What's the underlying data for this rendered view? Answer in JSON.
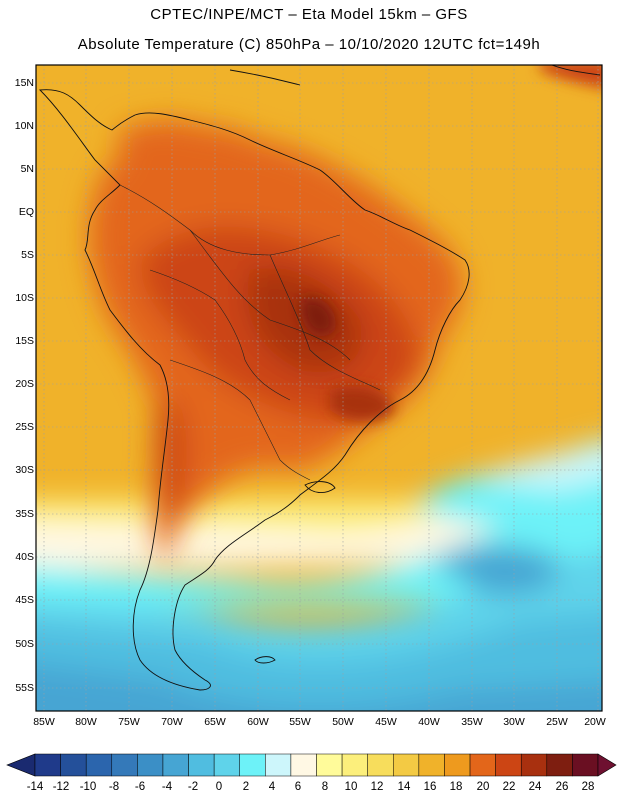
{
  "header": {
    "line1": "CPTEC/INPE/MCT –  Eta Model 15km – GFS",
    "line2": "Absolute Temperature (C) 850hPa – 10/10/2020 12UTC fct=149h"
  },
  "map": {
    "region": "South America",
    "lat_labels": [
      "15N",
      "10N",
      "5N",
      "EQ",
      "5S",
      "10S",
      "15S",
      "20S",
      "25S",
      "30S",
      "35S",
      "40S",
      "45S",
      "50S",
      "55S"
    ],
    "lon_labels": [
      "85W",
      "80W",
      "75W",
      "70W",
      "65W",
      "60W",
      "55W",
      "50W",
      "45W",
      "40W",
      "35W",
      "30W",
      "25W",
      "20W"
    ]
  },
  "colorbar": {
    "labels": [
      "-14",
      "-12",
      "-10",
      "-8",
      "-6",
      "-4",
      "-2",
      "0",
      "2",
      "4",
      "6",
      "8",
      "10",
      "12",
      "14",
      "16",
      "18",
      "20",
      "22",
      "24",
      "26",
      "28"
    ],
    "colors": [
      "#1f3a8a",
      "#24509a",
      "#2b65ad",
      "#3479b9",
      "#3b8fc6",
      "#46a5d3",
      "#50bde0",
      "#5fd3ea",
      "#6df2f8",
      "#cdf6fb",
      "#fff8e4",
      "#fffb9a",
      "#fcef7c",
      "#f7dd5c",
      "#f3ca44",
      "#f0b22a",
      "#ee9a1e",
      "#e3661a",
      "#cc4514",
      "#a8300f",
      "#7e1e10",
      "#6a0f22"
    ],
    "under_color": "#1a2a70",
    "over_color": "#6e1030"
  }
}
